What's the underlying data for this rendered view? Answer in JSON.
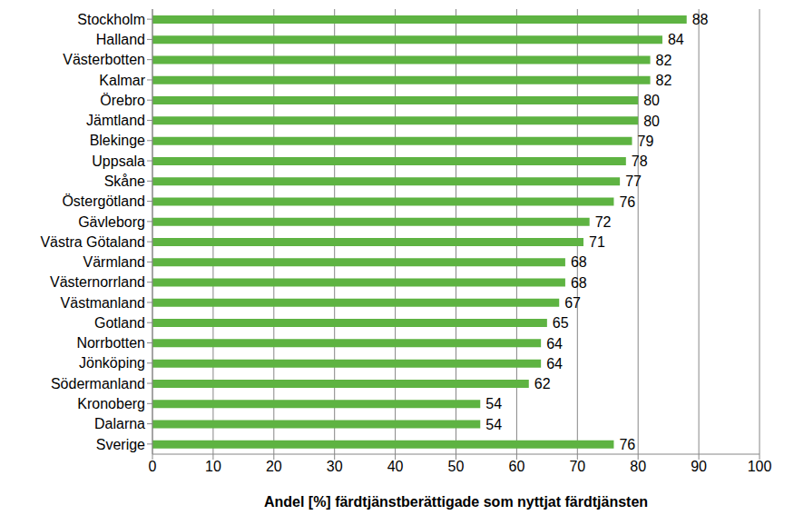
{
  "chart_data": {
    "type": "bar",
    "orientation": "horizontal",
    "x_label": "Andel [%] färdtjänstberättigade som nyttjat färdtjänsten",
    "categories": [
      "Stockholm",
      "Halland",
      "Västerbotten",
      "Kalmar",
      "Örebro",
      "Jämtland",
      "Blekinge",
      "Uppsala",
      "Skåne",
      "Östergötland",
      "Gävleborg",
      "Västra Götaland",
      "Värmland",
      "Västernorrland",
      "Västmanland",
      "Gotland",
      "Norrbotten",
      "Jönköping",
      "Södermanland",
      "Kronoberg",
      "Dalarna",
      "Sverige"
    ],
    "values": [
      88,
      84,
      82,
      82,
      80,
      80,
      79,
      78,
      77,
      76,
      72,
      71,
      68,
      68,
      67,
      65,
      64,
      64,
      62,
      54,
      54,
      76
    ],
    "color": "#5eb342",
    "xlim": [
      0,
      100
    ],
    "xticks": [
      0,
      10,
      20,
      30,
      40,
      50,
      60,
      70,
      80,
      90,
      100
    ],
    "grid": true,
    "data_labels": true
  }
}
